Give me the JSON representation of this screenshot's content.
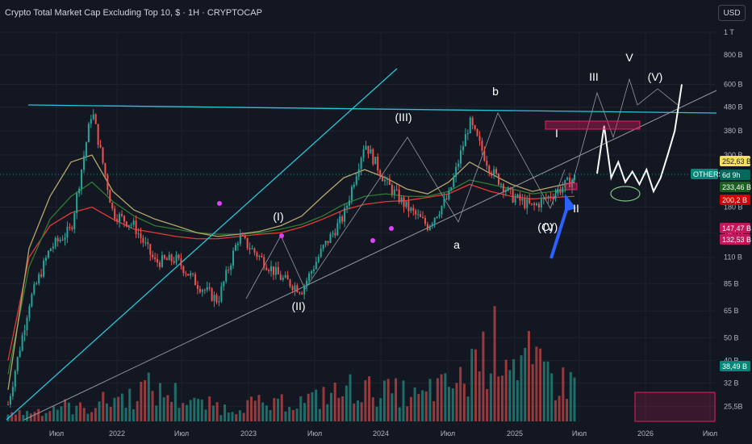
{
  "header": {
    "title": "Crypto Total Market Cap Excluding Top 10, $ · 1H · CRYPTOCAP",
    "currency_button": "USD"
  },
  "colors": {
    "background": "#131722",
    "candle_up": "#26a69a",
    "candle_down": "#ef5350",
    "ma_red": "#e53935",
    "ma_green": "#2e7d32",
    "ma_olive": "#b5a86b",
    "trendline_cyan": "#26c6da",
    "channel_gray": "#9598a1",
    "projection_white": "#ffffff",
    "box_pink": "#e91e63",
    "arrow_blue": "#2962ff"
  },
  "chart_data": {
    "type": "candlestick",
    "title": "Crypto Total Market Cap Excluding Top 10, $ · 1H · CRYPTOCAP",
    "y_scale": "log",
    "y_ticks": [
      "1 T",
      "800 B",
      "600 B",
      "480 B",
      "380 B",
      "300 B",
      "180 B",
      "140 B",
      "110 B",
      "85 B",
      "65 B",
      "50 B",
      "40 B",
      "32 B",
      "25,5B"
    ],
    "x_ticks": [
      "Июл",
      "2022",
      "Июл",
      "2023",
      "Июл",
      "2024",
      "Июл",
      "2025",
      "Июл",
      "2026",
      "Июл"
    ],
    "price_labels": [
      {
        "text": "252,63 B",
        "kind": "yellow"
      },
      {
        "text": "OTHERS",
        "kind": "teal-tag"
      },
      {
        "text": "6d 9h",
        "kind": "teal"
      },
      {
        "text": "233,46 B",
        "kind": "green"
      },
      {
        "text": "200,2 B",
        "kind": "red"
      },
      {
        "text": "147,47 B",
        "kind": "magenta"
      },
      {
        "text": "132,53 B",
        "kind": "magenta"
      },
      {
        "text": "38,49 B",
        "kind": "volume-green"
      }
    ],
    "wave_labels": [
      "(I)",
      "(II)",
      "(III)",
      "a",
      "b",
      "(C)",
      "(V)",
      "I",
      "II",
      "III",
      "V",
      "(V)"
    ],
    "series": [
      {
        "name": "price",
        "values": [
          26,
          70,
          120,
          145,
          470,
          170,
          150,
          105,
          108,
          85,
          72,
          135,
          110,
          90,
          80,
          120,
          165,
          340,
          230,
          180,
          150,
          200,
          415,
          260,
          200,
          180,
          205,
          240
        ]
      },
      {
        "name": "ma_red",
        "values": [
          40,
          110,
          150,
          170,
          180,
          160,
          145,
          140,
          135,
          132,
          132,
          135,
          138,
          140,
          148,
          160,
          175,
          185,
          190,
          192,
          198,
          205,
          225,
          210,
          200,
          195,
          198,
          200
        ]
      },
      {
        "name": "ma_green",
        "values": [
          35,
          100,
          160,
          200,
          230,
          190,
          165,
          150,
          145,
          140,
          138,
          138,
          140,
          145,
          152,
          165,
          185,
          200,
          205,
          200,
          200,
          210,
          235,
          225,
          215,
          205,
          210,
          215
        ]
      },
      {
        "name": "ma_olive",
        "values": [
          30,
          120,
          200,
          280,
          300,
          210,
          175,
          160,
          150,
          140,
          135,
          138,
          142,
          150,
          165,
          200,
          240,
          260,
          240,
          215,
          205,
          230,
          280,
          250,
          225,
          210,
          220,
          230
        ]
      },
      {
        "name": "projection",
        "values": [
          250,
          400,
          240,
          280,
          230,
          255,
          225,
          260,
          210,
          240,
          300,
          380,
          600
        ]
      }
    ],
    "volume": [
      8,
      10,
      14,
      12,
      18,
      22,
      30,
      25,
      20,
      15,
      12,
      16,
      14,
      18,
      20,
      25,
      30,
      28,
      26,
      22,
      30,
      35,
      60,
      70,
      55,
      45,
      35,
      40
    ]
  }
}
